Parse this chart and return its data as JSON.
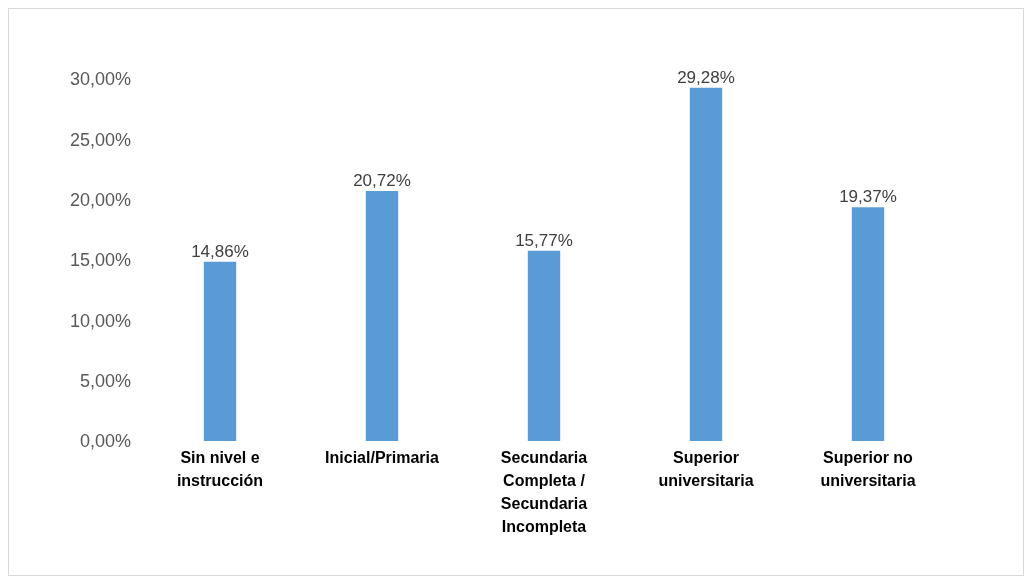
{
  "chart_data": {
    "type": "bar",
    "categories": [
      "Sin nivel e instrucción",
      "Inicial/Primaria",
      "Secundaria Completa / Secundaria Incompleta",
      "Superior universitaria",
      "Superior  no universitaria"
    ],
    "values": [
      14.86,
      20.72,
      15.77,
      29.28,
      19.37
    ],
    "value_labels": [
      "14,86%",
      "20,72%",
      "15,77%",
      "29,28%",
      "19,37%"
    ],
    "color": "#5b9bd5",
    "ylim": [
      0,
      30
    ],
    "yticks": [
      {
        "value": 0,
        "label": "0,00%"
      },
      {
        "value": 5,
        "label": "5,00%"
      },
      {
        "value": 10,
        "label": "10,00%"
      },
      {
        "value": 15,
        "label": "15,00%"
      },
      {
        "value": 20,
        "label": "20,00%"
      },
      {
        "value": 25,
        "label": "25,00%"
      },
      {
        "value": 30,
        "label": "30,00%"
      }
    ],
    "grid": false,
    "legend": false
  }
}
